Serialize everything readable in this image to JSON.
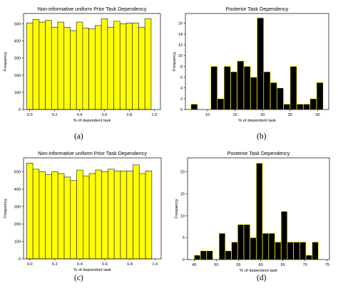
{
  "panel_labels": [
    "(a)",
    "(b)",
    "(c)",
    "(d)"
  ],
  "chart_data": [
    {
      "type": "bar",
      "title": "Non-informative uniform Prior Task Dependency",
      "xlabel": "% of dependent task",
      "ylabel": "Frequency",
      "bin_start": -0.025,
      "bin_width": 0.05,
      "values": [
        505,
        525,
        510,
        520,
        480,
        510,
        480,
        460,
        510,
        475,
        470,
        490,
        530,
        480,
        515,
        500,
        505,
        505,
        480,
        530
      ],
      "xlim": [
        -0.05,
        1.05
      ],
      "ylim": [
        0,
        560
      ],
      "xticks": [
        0.0,
        0.2,
        0.4,
        0.6,
        0.8,
        1.0
      ],
      "xtick_labels": [
        "0.0",
        "0.2",
        "0.4",
        "0.6",
        "0.8",
        "1.0"
      ],
      "yticks": [
        0,
        100,
        200,
        300,
        400,
        500
      ],
      "ytick_labels": [
        "0",
        "100",
        "200",
        "300",
        "400",
        "500"
      ],
      "bar_color": "#ffff00",
      "edge_color": "#333333",
      "grid": false
    },
    {
      "type": "bar",
      "title": "Posterior Task Dependency",
      "xlabel": "% of dependent task",
      "ylabel": "Frequency",
      "bin_start": 7,
      "bin_width": 1.2,
      "values": [
        1,
        0,
        0,
        8,
        2,
        8,
        7,
        9,
        8,
        6,
        17,
        7,
        5,
        4,
        1,
        8,
        1,
        1,
        2,
        5
      ],
      "xlim": [
        6,
        32
      ],
      "ylim": [
        0,
        17.8
      ],
      "xticks": [
        10,
        15,
        20,
        25,
        30
      ],
      "xtick_labels": [
        "10",
        "15",
        "20",
        "25",
        "30"
      ],
      "yticks": [
        0,
        2,
        4,
        6,
        8,
        10,
        12,
        14,
        16
      ],
      "ytick_labels": [
        "0",
        "2",
        "4",
        "6",
        "8",
        "10",
        "12",
        "14",
        "16"
      ],
      "bar_color": "#000000",
      "edge_color": "#ffff00",
      "grid": false
    },
    {
      "type": "bar",
      "title": "Non-informative uniform Prior Task Dependency",
      "xlabel": "% of dependent task",
      "ylabel": "Frequency",
      "bin_start": -0.025,
      "bin_width": 0.05,
      "values": [
        550,
        515,
        500,
        485,
        500,
        490,
        470,
        450,
        510,
        475,
        490,
        510,
        500,
        515,
        505,
        505,
        505,
        540,
        490,
        505
      ],
      "xlim": [
        -0.05,
        1.05
      ],
      "ylim": [
        0,
        580
      ],
      "xticks": [
        0.0,
        0.2,
        0.4,
        0.6,
        0.8,
        1.0
      ],
      "xtick_labels": [
        "0.0",
        "0.2",
        "0.4",
        "0.6",
        "0.8",
        "1.0"
      ],
      "yticks": [
        0,
        100,
        200,
        300,
        400,
        500
      ],
      "ytick_labels": [
        "0",
        "100",
        "200",
        "300",
        "400",
        "500"
      ],
      "bar_color": "#ffff00",
      "edge_color": "#333333",
      "grid": false
    },
    {
      "type": "bar",
      "title": "Posterior Task Dependency",
      "xlabel": "% of dependent task",
      "ylabel": "Frequency",
      "bin_start": 45,
      "bin_width": 1.4,
      "values": [
        1,
        2,
        2,
        0,
        6,
        2,
        4,
        8,
        8,
        5,
        22,
        6,
        6,
        4,
        11,
        4,
        4,
        4,
        1,
        4
      ],
      "xlim": [
        43.5,
        75.5
      ],
      "ylim": [
        0,
        23.2
      ],
      "xticks": [
        45,
        50,
        55,
        60,
        65,
        70,
        75
      ],
      "xtick_labels": [
        "45",
        "50",
        "55",
        "60",
        "65",
        "70",
        "75"
      ],
      "yticks": [
        0,
        5,
        10,
        15,
        20
      ],
      "ytick_labels": [
        "0",
        "5",
        "10",
        "15",
        "20"
      ],
      "bar_color": "#000000",
      "edge_color": "#ffff00",
      "grid": false
    }
  ]
}
